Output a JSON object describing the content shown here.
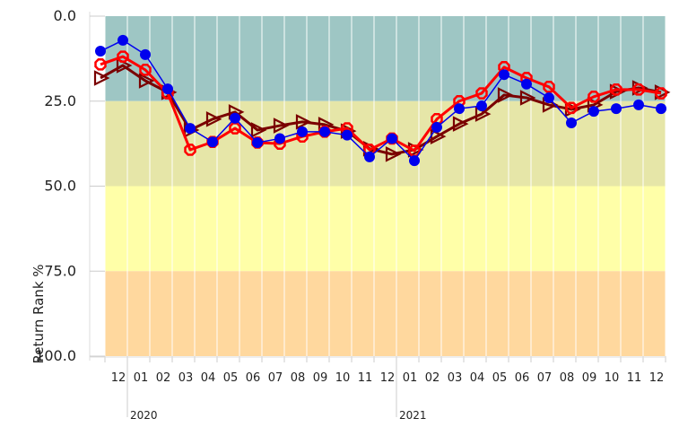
{
  "chart_data": {
    "type": "line",
    "y_label": "Return Rank %",
    "categories": [
      null,
      "12",
      "01",
      "02",
      "03",
      "04",
      "05",
      "06",
      "07",
      "08",
      "09",
      "10",
      "11",
      "12",
      "01",
      "02",
      "03",
      "04",
      "05",
      "06",
      "07",
      "08",
      "09",
      "10",
      "11",
      "12"
    ],
    "year_labels": [
      {
        "label": "2020",
        "category": 2
      },
      {
        "label": "2021",
        "category": 14
      }
    ],
    "ylim": [
      0,
      100
    ],
    "y_inverted": true,
    "yticks": [
      {
        "value": 0,
        "label": "0.0"
      },
      {
        "value": 25,
        "label": "25.0"
      },
      {
        "value": 50,
        "label": "50.0"
      },
      {
        "value": 75,
        "label": "75.0"
      },
      {
        "value": 100,
        "label": "100.0"
      }
    ],
    "bands": [
      {
        "from": 0,
        "to": 25,
        "color": "#9ec6c4"
      },
      {
        "from": 25,
        "to": 50,
        "color": "#e6e6a8"
      },
      {
        "from": 50,
        "to": 75,
        "color": "#ffffa8"
      },
      {
        "from": 75,
        "to": 100,
        "color": "#ffd89e"
      }
    ],
    "series": [
      {
        "color": "#7a0000",
        "marker": "triangle",
        "values": [
          18.2,
          14.5,
          19,
          22.4,
          33.5,
          30.3,
          28.2,
          33.5,
          32.2,
          31.1,
          31.9,
          33.8,
          39,
          40.6,
          39.3,
          35.4,
          31.7,
          28.8,
          23.2,
          24,
          26.1,
          27.4,
          26.1,
          22.2,
          21.1,
          22.4
        ]
      },
      {
        "color": "#ff0000",
        "marker": "octagon",
        "values": [
          14.2,
          11.9,
          15.8,
          22.7,
          39.3,
          37,
          33,
          37.2,
          37.5,
          35.4,
          34,
          33,
          39.3,
          36,
          39.6,
          30.3,
          25,
          22.7,
          15,
          18.2,
          20.8,
          27,
          23.7,
          21.6,
          21.6,
          22.7
        ]
      },
      {
        "color": "#0000ee",
        "marker": "circle",
        "values": [
          10.3,
          7.1,
          11.3,
          21.4,
          33,
          37,
          30,
          37.2,
          36,
          34,
          34,
          35,
          41.4,
          36,
          42.5,
          32.7,
          27.2,
          26.4,
          17.2,
          20,
          24,
          31.4,
          28,
          27.2,
          26.1,
          27.2
        ]
      }
    ]
  }
}
